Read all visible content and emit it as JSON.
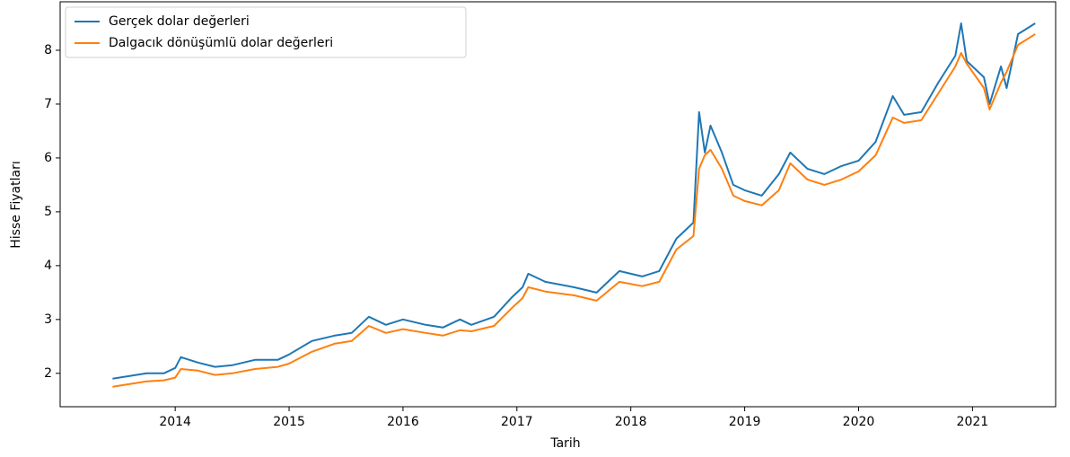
{
  "chart_data": {
    "type": "line",
    "xlabel": "Tarih",
    "ylabel": "Hisse Fiyatları",
    "x": [
      2013.45,
      2013.6,
      2013.75,
      2013.9,
      2014.0,
      2014.05,
      2014.2,
      2014.35,
      2014.5,
      2014.7,
      2014.9,
      2015.0,
      2015.2,
      2015.4,
      2015.55,
      2015.7,
      2015.85,
      2016.0,
      2016.2,
      2016.35,
      2016.5,
      2016.6,
      2016.8,
      2016.95,
      2017.05,
      2017.1,
      2017.25,
      2017.5,
      2017.7,
      2017.9,
      2018.1,
      2018.25,
      2018.4,
      2018.55,
      2018.6,
      2018.65,
      2018.7,
      2018.8,
      2018.9,
      2019.0,
      2019.15,
      2019.3,
      2019.4,
      2019.55,
      2019.7,
      2019.85,
      2020.0,
      2020.15,
      2020.3,
      2020.4,
      2020.55,
      2020.7,
      2020.85,
      2020.9,
      2020.95,
      2021.1,
      2021.15,
      2021.25,
      2021.3,
      2021.4,
      2021.55
    ],
    "series": [
      {
        "name": "Gerçek dolar değerleri",
        "color": "#1f77b4",
        "values": [
          1.9,
          1.95,
          2.0,
          2.0,
          2.1,
          2.3,
          2.2,
          2.12,
          2.15,
          2.25,
          2.25,
          2.35,
          2.6,
          2.7,
          2.75,
          3.05,
          2.9,
          3.0,
          2.9,
          2.85,
          3.0,
          2.9,
          3.05,
          3.4,
          3.6,
          3.85,
          3.7,
          3.6,
          3.5,
          3.9,
          3.8,
          3.9,
          4.5,
          4.8,
          6.85,
          6.1,
          6.6,
          6.1,
          5.5,
          5.4,
          5.3,
          5.7,
          6.1,
          5.8,
          5.7,
          5.85,
          5.95,
          6.3,
          7.15,
          6.8,
          6.85,
          7.4,
          7.9,
          8.5,
          7.8,
          7.5,
          7.0,
          7.7,
          7.3,
          8.3,
          8.5
        ]
      },
      {
        "name": "Dalgacık dönüşümlü dolar değerleri",
        "color": "#ff7f0e",
        "values": [
          1.75,
          1.8,
          1.85,
          1.87,
          1.92,
          2.08,
          2.05,
          1.97,
          2.0,
          2.08,
          2.12,
          2.18,
          2.4,
          2.55,
          2.6,
          2.88,
          2.75,
          2.82,
          2.75,
          2.7,
          2.8,
          2.78,
          2.88,
          3.2,
          3.4,
          3.6,
          3.52,
          3.45,
          3.35,
          3.7,
          3.62,
          3.7,
          4.3,
          4.55,
          5.8,
          6.05,
          6.15,
          5.8,
          5.3,
          5.2,
          5.12,
          5.4,
          5.9,
          5.6,
          5.5,
          5.6,
          5.75,
          6.05,
          6.75,
          6.65,
          6.7,
          7.2,
          7.7,
          7.95,
          7.75,
          7.3,
          6.9,
          7.4,
          7.6,
          8.1,
          8.3
        ]
      }
    ],
    "xlim": [
      2012.99,
      2021.73
    ],
    "xticks": [
      2014,
      2015,
      2016,
      2017,
      2018,
      2019,
      2020,
      2021
    ],
    "ylim": [
      1.38,
      8.9
    ],
    "yticks": [
      2,
      3,
      4,
      5,
      6,
      7,
      8
    ],
    "legend": "upper left",
    "grid": false
  }
}
